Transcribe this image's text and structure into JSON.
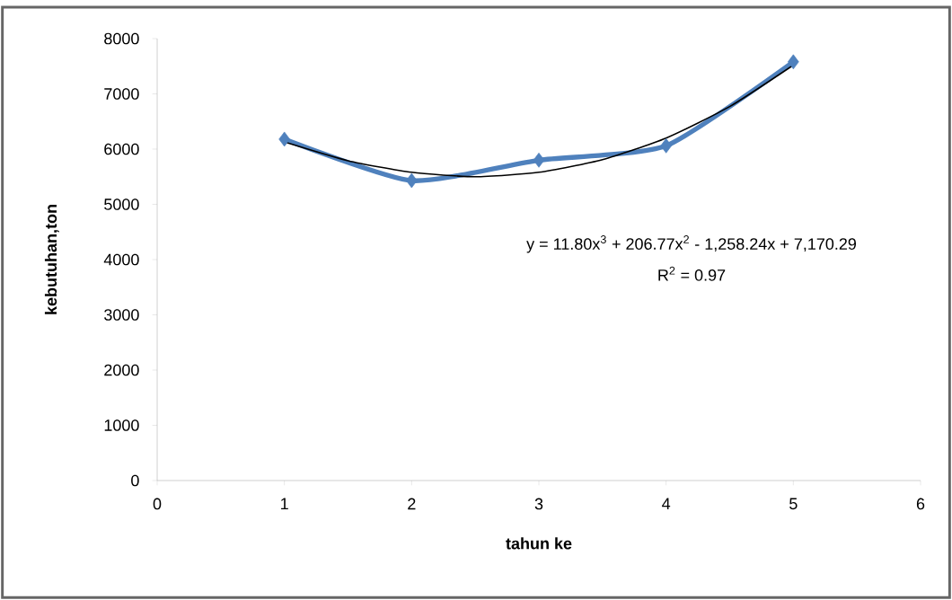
{
  "chart_data": {
    "type": "line",
    "xlabel": "tahun ke",
    "ylabel": "kebutuhan,ton",
    "x": [
      1,
      2,
      3,
      4,
      5
    ],
    "series": [
      {
        "color": "#4f81bd",
        "marker": "diamond",
        "values": [
          6180,
          5430,
          5800,
          6060,
          7580
        ]
      },
      {
        "color": "#000000",
        "marker": "none",
        "x": [
          1,
          1.5,
          2,
          2.5,
          3,
          3.5,
          4,
          4.5,
          5
        ],
        "values": [
          6130,
          5790,
          5580,
          5500,
          5580,
          5810,
          6200,
          6770,
          7520
        ]
      }
    ],
    "xlim": [
      0,
      6
    ],
    "ylim": [
      0,
      8000
    ],
    "xticks": [
      0,
      1,
      2,
      3,
      4,
      5,
      6
    ],
    "yticks": [
      0,
      1000,
      2000,
      3000,
      4000,
      5000,
      6000,
      7000,
      8000
    ],
    "annotations": [
      "y = 11.80x$^{3}$ + 206.77x$^{2}$ - 1,258.24x + 7,170.29",
      "R$^{2}$ = 0.97"
    ]
  }
}
